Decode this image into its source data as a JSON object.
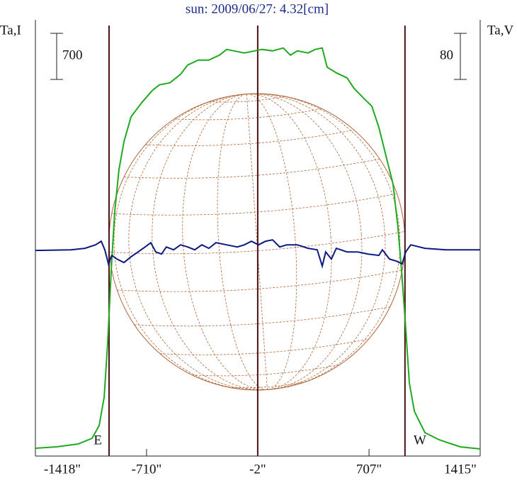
{
  "chart_data": {
    "type": "line",
    "title": "sun: 2009/06/27: 4.32[cm]",
    "y_label": "Ta,I",
    "y2_label": "Ta,V",
    "xlim": [
      -1418,
      1415
    ],
    "xticks": [
      {
        "value": -1418,
        "label": "-1418\""
      },
      {
        "value": -710,
        "label": "-710\""
      },
      {
        "value": -2,
        "label": "-2\""
      },
      {
        "value": 707,
        "label": "707\""
      },
      {
        "value": 1415,
        "label": "1415\""
      }
    ],
    "ylim": [
      0,
      6620
    ],
    "y2lim": [
      -358,
      399
    ],
    "scale_bars": [
      {
        "value": 700,
        "axis": "y"
      },
      {
        "value": 80,
        "axis": "y2"
      }
    ],
    "vlines": [
      -949,
      -2,
      936
    ],
    "limb_labels": [
      "E",
      "W"
    ],
    "series": [
      {
        "name": "Ta,I",
        "color": "#1faa1f",
        "axis": "y",
        "x": [
          -1418,
          -1283,
          -1147,
          -1057,
          -1012,
          -980,
          -957,
          -935,
          -913,
          -886,
          -854,
          -809,
          -741,
          -674,
          -629,
          -561,
          -493,
          -448,
          -381,
          -313,
          -245,
          -200,
          -155,
          -87,
          -20,
          25,
          93,
          161,
          206,
          251,
          319,
          364,
          409,
          440,
          499,
          567,
          612,
          679,
          725,
          770,
          815,
          860,
          891,
          914,
          937,
          964,
          996,
          1063,
          1153,
          1288,
          1415
        ],
        "values": [
          118,
          140,
          183,
          269,
          463,
          894,
          1755,
          2832,
          3694,
          4340,
          4771,
          5148,
          5363,
          5547,
          5633,
          5665,
          5794,
          5934,
          6010,
          6010,
          6085,
          6171,
          6150,
          6117,
          6150,
          6171,
          6150,
          6193,
          6085,
          6150,
          6117,
          6171,
          6193,
          5902,
          5816,
          5740,
          5579,
          5417,
          5310,
          4987,
          4556,
          4125,
          3479,
          2832,
          2079,
          1109,
          679,
          355,
          248,
          140,
          108
        ]
      },
      {
        "name": "Ta,V",
        "color": "#0c1a82",
        "axis": "y2",
        "x": [
          -1418,
          -1192,
          -1102,
          -1035,
          -999,
          -976,
          -953,
          -931,
          -899,
          -854,
          -809,
          -764,
          -719,
          -683,
          -651,
          -615,
          -584,
          -538,
          -493,
          -448,
          -403,
          -358,
          -313,
          -268,
          -200,
          -132,
          -87,
          -42,
          3,
          48,
          93,
          138,
          183,
          251,
          319,
          377,
          409,
          431,
          467,
          499,
          567,
          634,
          702,
          770,
          792,
          837,
          882,
          918,
          941,
          973,
          1063,
          1198,
          1415
        ],
        "values": [
          -1.2,
          0,
          2.5,
          8.6,
          14.8,
          0,
          -24.6,
          -9.8,
          -16,
          -22.2,
          -12.3,
          -3.7,
          4.9,
          12.3,
          -3.7,
          -7.4,
          4.9,
          0,
          8.6,
          4.9,
          0,
          8.6,
          2.5,
          12.3,
          8.6,
          4.9,
          8.6,
          14.8,
          8.6,
          14.8,
          17.2,
          4.9,
          8.6,
          8.6,
          2.5,
          0,
          -28.3,
          -3.7,
          -16,
          2.5,
          -3.7,
          -3.7,
          -7.4,
          -9.8,
          0,
          -16,
          -19.7,
          -24.6,
          -3.7,
          8.6,
          2.5,
          0,
          0
        ]
      }
    ]
  }
}
